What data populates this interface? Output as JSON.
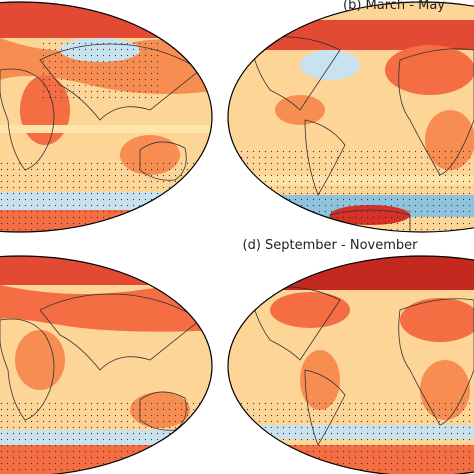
{
  "panels": [
    {
      "title": "(b) March - May"
    },
    {
      "title": "(d) September - November"
    }
  ]
}
